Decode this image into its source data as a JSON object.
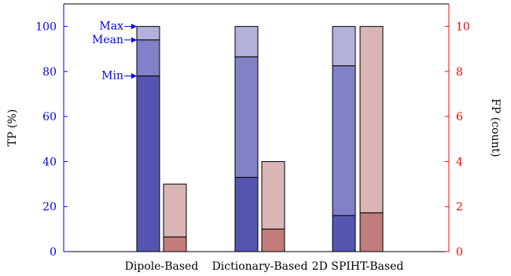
{
  "chart_data": {
    "type": "bar",
    "categories": [
      "Dipole-Based",
      "Dictionary-Based",
      "2D SPIHT-Based"
    ],
    "left_axis": {
      "label": "TP (%)",
      "ylim": [
        0,
        110
      ],
      "ticks": [
        0,
        20,
        40,
        60,
        80,
        100
      ],
      "color": "#0000ff"
    },
    "right_axis": {
      "label": "FP (count)",
      "ylim": [
        0,
        11
      ],
      "ticks": [
        0,
        2,
        4,
        6,
        8,
        10
      ],
      "color": "#ff0000"
    },
    "tp_series": [
      {
        "name": "Min",
        "values": [
          78,
          33,
          16
        ]
      },
      {
        "name": "Mean",
        "values": [
          94,
          86.5,
          82.5
        ]
      },
      {
        "name": "Max",
        "values": [
          100,
          100,
          100
        ]
      }
    ],
    "fp_series": [
      {
        "name": "Min",
        "values": [
          0.65,
          1.0,
          1.72
        ]
      },
      {
        "name": "Max",
        "values": [
          3,
          4,
          10
        ]
      }
    ],
    "annotations": [
      "Max",
      "Mean",
      "Min"
    ],
    "colors": {
      "tp_min": "#5555b1",
      "tp_mean": "#8181c7",
      "tp_max": "#b1b1db",
      "fp_min": "#c27b7b",
      "fp_max": "#d9b5b5",
      "axis_left": "#0000ff",
      "axis_right": "#ff0000",
      "annotation": "#0000ff"
    }
  }
}
